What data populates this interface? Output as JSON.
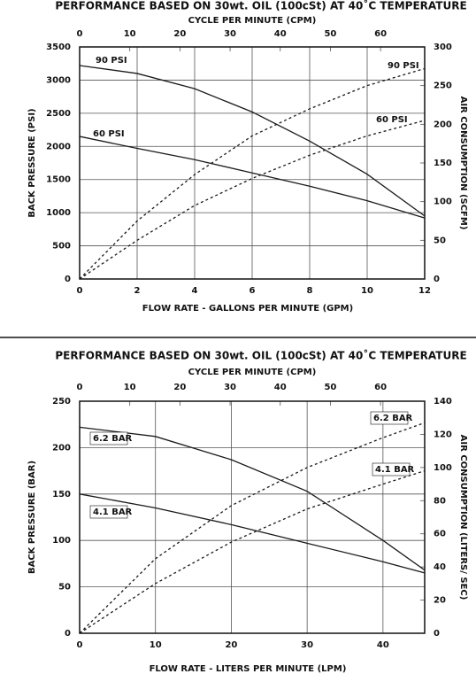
{
  "chart_data": [
    {
      "type": "line",
      "title": "PERFORMANCE BASED ON 30wt. OIL (100cSt) AT 40˚C TEMPERATURE",
      "x_label": "FLOW RATE - GALLONS PER MINUTE (GPM)",
      "y_label": "BACK PRESSURE  (PSI)",
      "y2_label": "AIR CONSUMPTION  (SCFM)",
      "x2_label": "CYCLE PER MINUTE (CPM)",
      "xlim": [
        0,
        12
      ],
      "xticks": [
        0,
        2,
        4,
        6,
        8,
        10,
        12
      ],
      "x2lim": [
        0,
        68.8
      ],
      "x2ticks": [
        0,
        10,
        20,
        30,
        40,
        50,
        60
      ],
      "ylim": [
        0,
        3500
      ],
      "yticks": [
        0,
        500,
        1000,
        1500,
        2000,
        2500,
        3000,
        3500
      ],
      "y2lim": [
        0,
        300
      ],
      "y2ticks": [
        0,
        50,
        100,
        150,
        200,
        250,
        300
      ],
      "grid": true,
      "x": [
        0,
        2,
        4,
        6,
        8,
        10,
        12
      ],
      "series": [
        {
          "name": "90 PSI",
          "color": "#1a1a1a",
          "line_style": "solid",
          "values": [
            3220,
            3100,
            2870,
            2520,
            2080,
            1580,
            950
          ]
        },
        {
          "name": "60 PSI",
          "color": "#1a1a1a",
          "line_style": "solid",
          "values": [
            2150,
            1970,
            1800,
            1600,
            1400,
            1180,
            920
          ]
        },
        {
          "name": "90 PSI",
          "color": "#1a1a1a",
          "line_style": "dashed",
          "axis": "y2",
          "values": [
            0,
            75,
            135,
            185,
            220,
            250,
            272
          ]
        },
        {
          "name": "60 PSI",
          "color": "#1a1a1a",
          "line_style": "dashed",
          "axis": "y2",
          "values": [
            0,
            50,
            95,
            130,
            160,
            185,
            205
          ]
        }
      ]
    },
    {
      "type": "line",
      "title": "PERFORMANCE BASED ON 30wt. OIL (100cSt) AT 40˚C TEMPERATURE",
      "x_label": "FLOW RATE - LITERS PER MINUTE (LPM)",
      "y_label": "BACK PRESSURE (BAR)",
      "y2_label": "AIR CONSUMPTION (LITERS/ SEC)",
      "x2_label": "CYCLE PER MINUTE (CPM)",
      "xlim": [
        0,
        45.5
      ],
      "xticks": [
        0,
        10,
        20,
        30,
        40
      ],
      "x2lim": [
        0,
        68.8
      ],
      "x2ticks": [
        0,
        10,
        20,
        30,
        40,
        50,
        60
      ],
      "ylim": [
        0,
        250
      ],
      "yticks": [
        0,
        50,
        100,
        150,
        200,
        250
      ],
      "y2lim": [
        0,
        140
      ],
      "y2ticks": [
        0,
        20,
        40,
        60,
        80,
        100,
        120,
        140
      ],
      "grid": true,
      "x": [
        0,
        10,
        20,
        30,
        40,
        45.5
      ],
      "series": [
        {
          "name": "6.2 BAR",
          "color": "#1a1a1a",
          "line_style": "solid",
          "values": [
            222,
            212,
            187,
            153,
            100,
            68
          ]
        },
        {
          "name": "4.1 BAR",
          "color": "#1a1a1a",
          "line_style": "solid",
          "values": [
            150,
            135,
            117,
            97,
            77,
            65
          ]
        },
        {
          "name": "6.2 BAR",
          "color": "#1a1a1a",
          "line_style": "dashed",
          "axis": "y2",
          "values": [
            0,
            45,
            77,
            100,
            118,
            127
          ]
        },
        {
          "name": "4.1 BAR",
          "color": "#1a1a1a",
          "line_style": "dashed",
          "axis": "y2",
          "values": [
            0,
            30,
            55,
            75,
            90,
            98
          ]
        }
      ]
    }
  ]
}
